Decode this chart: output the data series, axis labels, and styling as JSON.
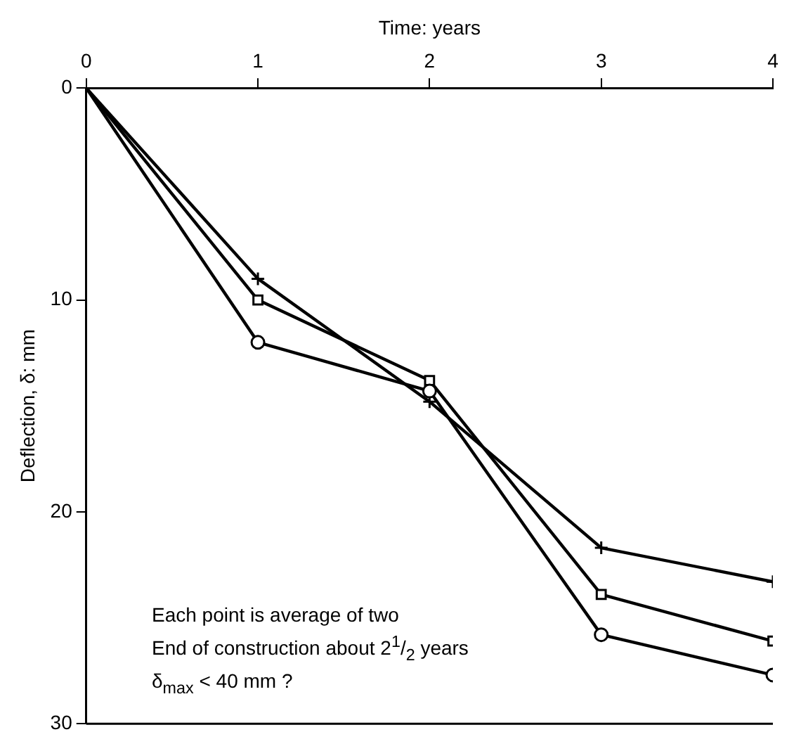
{
  "chart_data": {
    "type": "line",
    "xlabel": "Time: years",
    "ylabel": "Deflection, δ: mm",
    "x": [
      0,
      1,
      2,
      3,
      4
    ],
    "series": [
      {
        "color": "#000000",
        "marker": "cross",
        "values": [
          0,
          9,
          14.8,
          21.7,
          23.3
        ]
      },
      {
        "color": "#000000",
        "marker": "square",
        "values": [
          0,
          10,
          13.8,
          23.9,
          26.1
        ]
      },
      {
        "color": "#000000",
        "marker": "circle",
        "values": [
          0,
          12,
          14.3,
          25.8,
          27.7
        ]
      }
    ],
    "xlim": [
      0,
      4
    ],
    "xticks": [
      0,
      1,
      2,
      3,
      4
    ],
    "ylim": [
      30,
      0
    ],
    "yticks": [
      0,
      10,
      20,
      30
    ],
    "grid": false,
    "legend": false,
    "line_style": "solid",
    "annotations": [
      "Each point is average of two",
      "End of construction about 2$^{1}$/$_{2}$ years",
      "δ$_{max}$ < 40 mm ?"
    ]
  }
}
